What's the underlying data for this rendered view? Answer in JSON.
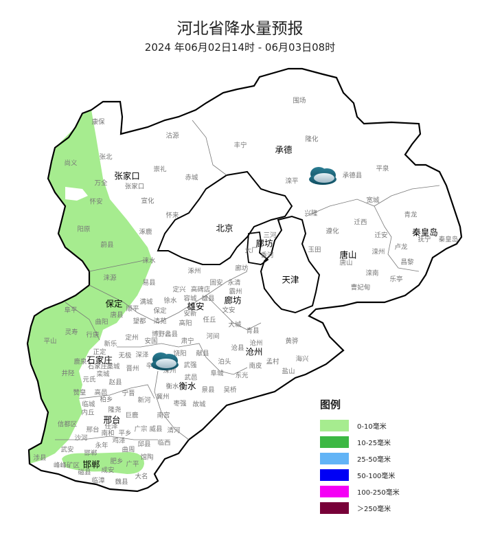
{
  "header": {
    "title": "河北省降水量预报",
    "subtitle": "2024 年06月02日14时 - 06月03日08时"
  },
  "map": {
    "rain_fill_color": "#a6ec8f",
    "cities": [
      "张家口",
      "北京",
      "承德",
      "秦皇岛",
      "唐山",
      "天津",
      "廊坊",
      "保定",
      "雄安",
      "廊坊",
      "石家庄",
      "沧州",
      "衡水",
      "邢台",
      "邯郸"
    ],
    "counties": [
      "康保",
      "沽源",
      "丰宁",
      "张北",
      "尚义",
      "崇礼",
      "赤城",
      "万全",
      "张家口",
      "怀安",
      "宣化",
      "怀来",
      "阳原",
      "涿鹿",
      "蔚县",
      "涞水",
      "围场",
      "隆化",
      "滦平",
      "承德县",
      "平泉",
      "宽城",
      "兴隆",
      "迁西",
      "青龙",
      "遵化",
      "迁安",
      "抚宁",
      "秦皇岛",
      "卢龙",
      "玉田",
      "唐山",
      "滦州",
      "昌黎",
      "滦南",
      "乐亭",
      "曹妃甸",
      "三河",
      "大厂",
      "香河",
      "廊坊",
      "涞源",
      "易县",
      "涿州",
      "定兴",
      "高碑店",
      "固安",
      "永清",
      "霸州",
      "满城",
      "徐水",
      "容城",
      "雄县",
      "阜平",
      "顺平",
      "保定",
      "唐县",
      "安新",
      "文安",
      "曲阳",
      "望都",
      "清苑",
      "高阳",
      "任丘",
      "大城",
      "灵寿",
      "行唐",
      "定州",
      "博野蠡县",
      "青县",
      "平山",
      "新乐",
      "安国",
      "肃宁",
      "河间",
      "献县",
      "沧县",
      "沧州",
      "黄骅",
      "正定",
      "无极",
      "深泽",
      "饶阳",
      "鹿泉",
      "石家庄",
      "藁城",
      "晋州",
      "辛集",
      "深州",
      "武强",
      "泊头",
      "南皮",
      "孟村",
      "海兴",
      "井陉",
      "栾城",
      "武邑",
      "阜城",
      "东光",
      "盐山",
      "元氏",
      "赵县",
      "衡水",
      "景县",
      "吴桥",
      "赞皇",
      "高邑",
      "宁晋",
      "柏乡",
      "新河",
      "冀州",
      "枣强",
      "故城",
      "临城",
      "隆尧",
      "内丘",
      "巨鹿",
      "南宫",
      "信都区",
      "邢台",
      "任泽",
      "南和",
      "平乡",
      "广宗",
      "威县",
      "清河",
      "沙河",
      "鸡泽",
      "永年",
      "邱县",
      "临西",
      "武安",
      "邯郸",
      "曲周",
      "馆陶",
      "涉县",
      "肥乡",
      "峰峰矿区",
      "广平",
      "磁县",
      "成安",
      "大名",
      "临漳",
      "魏县"
    ],
    "weather_icons": [
      "cloud-icon",
      "cloud-icon"
    ]
  },
  "legend": {
    "title": "图例",
    "items": [
      {
        "label": "0-10毫米",
        "color": "#a6ec8f"
      },
      {
        "label": "10-25毫米",
        "color": "#3cb843"
      },
      {
        "label": "25-50毫米",
        "color": "#62b4f6"
      },
      {
        "label": "50-100毫米",
        "color": "#0000f5"
      },
      {
        "label": "100-250毫米",
        "color": "#f500f5"
      },
      {
        "label": "＞250毫米",
        "color": "#770038"
      }
    ]
  }
}
